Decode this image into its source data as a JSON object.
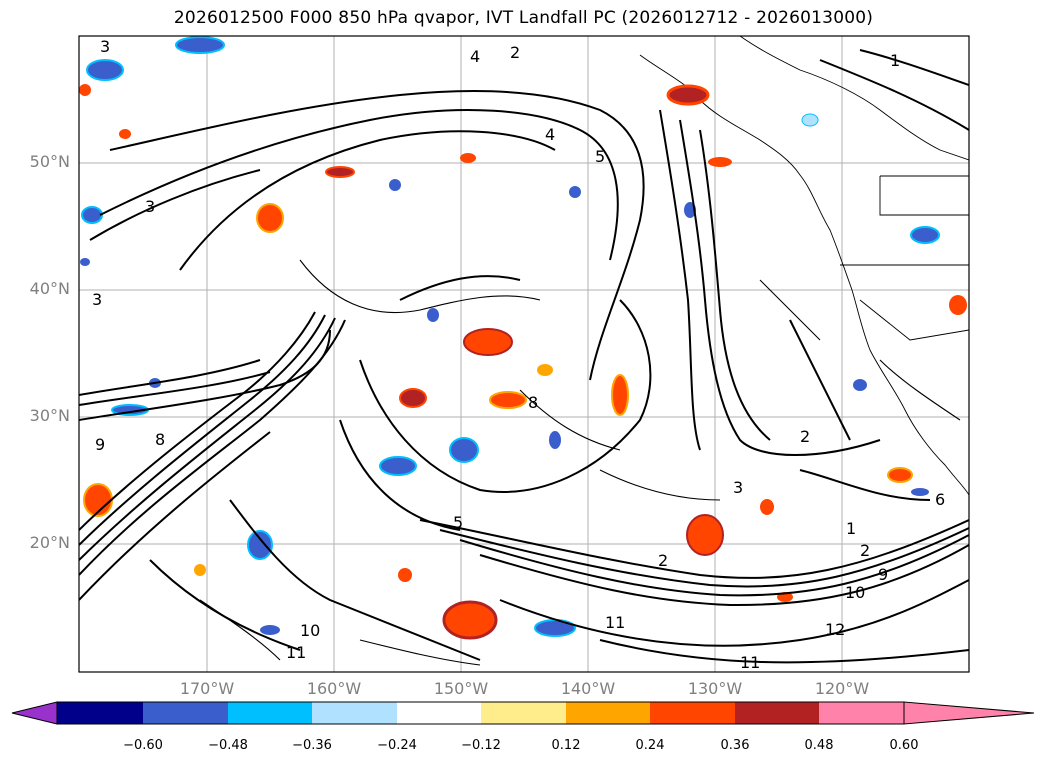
{
  "title": "2026012500 F000 850 hPa qvapor, IVT Landfall PC (2026012712 - 2026013000)",
  "map": {
    "lat_labels": [
      "50°N",
      "40°N",
      "30°N",
      "20°N"
    ],
    "lon_labels": [
      "170°W",
      "160°W",
      "150°W",
      "140°W",
      "130°W",
      "120°W"
    ],
    "contour_labels": [
      "3",
      "2",
      "4",
      "1",
      "4",
      "5",
      "3",
      "2",
      "3",
      "9",
      "8",
      "11",
      "10",
      "12",
      "11",
      "2",
      "10",
      "6",
      "1",
      "2",
      "9",
      "11",
      "5",
      "8",
      "3"
    ]
  },
  "colorbar": {
    "colors": [
      "#9932cc",
      "#00008b",
      "#3a5fcd",
      "#00bfff",
      "#b0e2ff",
      "#ffffff",
      "#ffec8b",
      "#ffa500",
      "#ff4500",
      "#b22222",
      "#ff82ab"
    ],
    "tick_labels": [
      "−0.60",
      "−0.48",
      "−0.36",
      "−0.24",
      "−0.12",
      "0.12",
      "0.24",
      "0.36",
      "0.48",
      "0.60"
    ]
  }
}
